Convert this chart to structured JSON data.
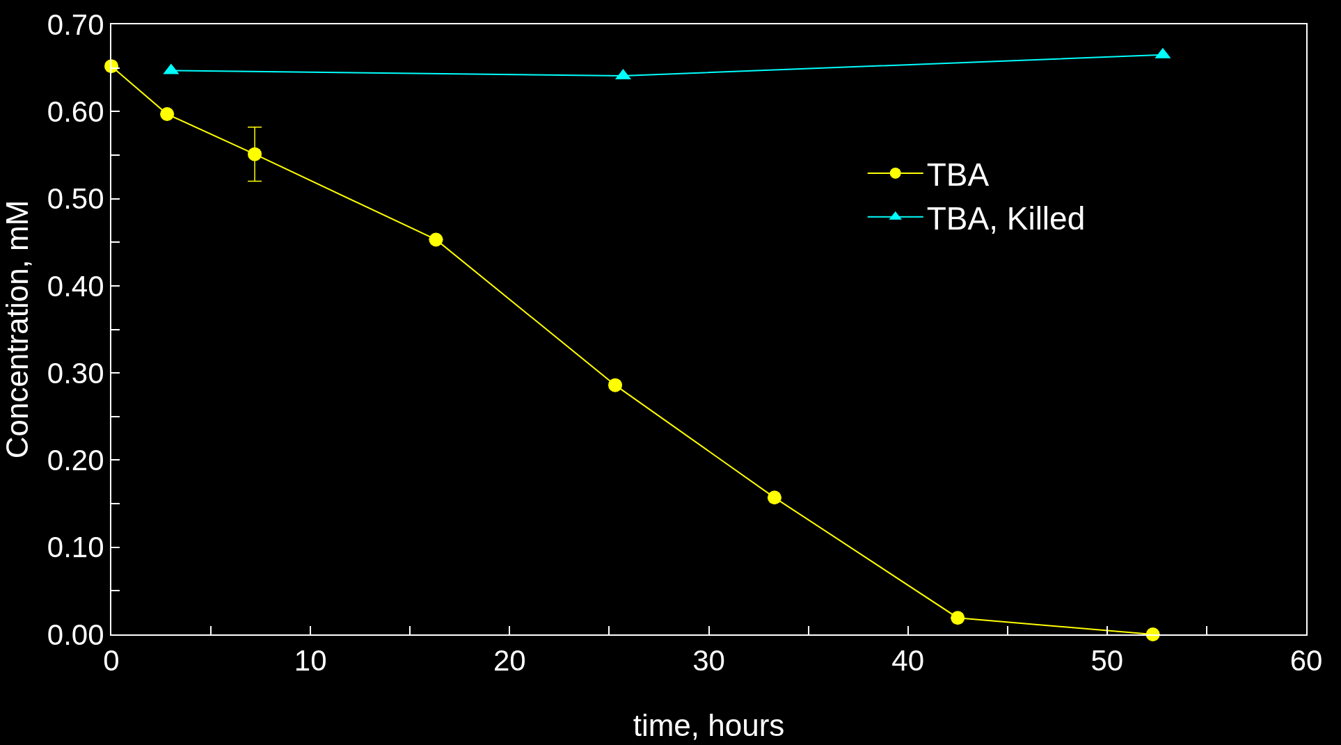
{
  "chart_data": {
    "type": "line",
    "xlabel": "time, hours",
    "ylabel": "Concentration, mM",
    "xlim": [
      0,
      60
    ],
    "ylim": [
      0,
      0.7
    ],
    "xticks": [
      0,
      {
        "value": 5,
        "label": null
      },
      10,
      {
        "value": 15,
        "label": null
      },
      20,
      {
        "value": 25,
        "label": null
      },
      30,
      {
        "value": 35,
        "label": null
      },
      40,
      {
        "value": 45,
        "label": null
      },
      50,
      {
        "value": 55,
        "label": null
      },
      60
    ],
    "yticks": [
      {
        "value": 0,
        "label": "0.00"
      },
      {
        "value": 0.05,
        "label": null
      },
      {
        "value": 0.1,
        "label": "0.10"
      },
      {
        "value": 0.15,
        "label": null
      },
      {
        "value": 0.2,
        "label": "0.20"
      },
      {
        "value": 0.25,
        "label": null
      },
      {
        "value": 0.3,
        "label": "0.30"
      },
      {
        "value": 0.35,
        "label": null
      },
      {
        "value": 0.4,
        "label": "0.40"
      },
      {
        "value": 0.45,
        "label": null
      },
      {
        "value": 0.5,
        "label": "0.50"
      },
      {
        "value": 0.55,
        "label": null
      },
      {
        "value": 0.6,
        "label": "0.60"
      },
      {
        "value": 0.65,
        "label": null
      },
      {
        "value": 0.7,
        "label": "0.70"
      }
    ],
    "grid": false,
    "legend": "right",
    "line_style": "solid",
    "series": [
      {
        "name": "TBA",
        "color": "#ffff00",
        "marker": "circle",
        "x": [
          0,
          2.8,
          7.2,
          16.3,
          25.3,
          33.3,
          42.5,
          52.3
        ],
        "values": [
          0.652,
          0.597,
          0.551,
          0.453,
          0.286,
          0.157,
          0.019,
          0.0
        ],
        "errors": [
          null,
          null,
          [
            0.52,
            0.582
          ],
          null,
          null,
          null,
          null,
          null
        ]
      },
      {
        "name": "TBA, Killed",
        "color": "#00ffff",
        "marker": "triangle",
        "x": [
          3.0,
          25.7,
          52.8
        ],
        "values": [
          0.647,
          0.641,
          0.665
        ]
      }
    ]
  }
}
